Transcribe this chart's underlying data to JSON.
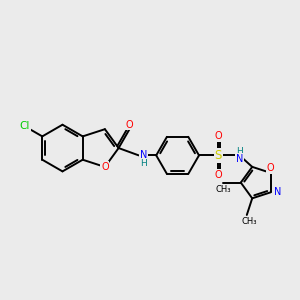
{
  "bg_color": "#ebebeb",
  "atom_colors": {
    "Cl": "#00cc00",
    "O": "#ff0000",
    "N": "#0000ff",
    "S": "#cccc00",
    "H": "#008080",
    "C": "#000000"
  }
}
